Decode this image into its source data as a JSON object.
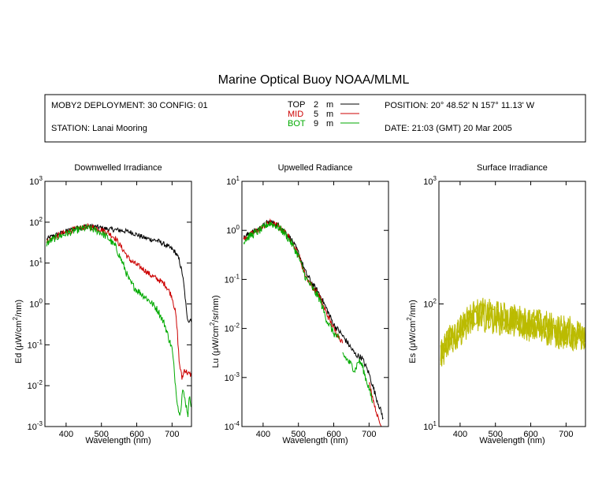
{
  "title": "Marine Optical Buoy NOAA/MLML",
  "info": {
    "deployment": "MOBY2 DEPLOYMENT: 30 CONFIG: 01",
    "station": "STATION: Lanai Mooring",
    "position": "POSITION: 20° 48.52' N   157° 11.13' W",
    "date": "DATE: 21:03 (GMT) 20 Mar 2005",
    "depth_unit": "m"
  },
  "legend": [
    {
      "name": "TOP",
      "depth": "2",
      "color": "#000000"
    },
    {
      "name": "MID",
      "depth": "5",
      "color": "#cc0000"
    },
    {
      "name": "BOT",
      "depth": "9",
      "color": "#00aa00"
    }
  ],
  "chart_data": [
    {
      "type": "line",
      "title": "Downwelled Irradiance",
      "xlabel": "Wavelength (nm)",
      "ylabel_prefix": "Ed  (",
      "ylabel_mu": "μ",
      "ylabel_mid": "W/cm",
      "ylabel_sup": "2",
      "ylabel_suffix": "/nm)",
      "xlim": [
        340,
        755
      ],
      "ylim": [
        0.001,
        1000
      ],
      "yscale": "log",
      "xticks": [
        400,
        500,
        600,
        700
      ],
      "yticks": [
        {
          "base": "10",
          "exp": "-3"
        },
        {
          "base": "10",
          "exp": "-2"
        },
        {
          "base": "10",
          "exp": "-1"
        },
        {
          "base": "10",
          "exp": "0"
        },
        {
          "base": "10",
          "exp": "1"
        },
        {
          "base": "10",
          "exp": "2"
        },
        {
          "base": "10",
          "exp": "3"
        }
      ],
      "series": [
        {
          "name": "TOP",
          "color": "#000000",
          "noise": 0.06,
          "x": [
            345,
            360,
            380,
            400,
            420,
            440,
            460,
            480,
            500,
            520,
            540,
            560,
            580,
            600,
            620,
            640,
            660,
            680,
            700,
            710,
            720,
            730,
            737,
            742,
            748,
            755
          ],
          "y": [
            38,
            45,
            52,
            60,
            68,
            75,
            80,
            78,
            72,
            68,
            65,
            62,
            58,
            50,
            42,
            38,
            35,
            28,
            22,
            18,
            12,
            5,
            1.5,
            0.5,
            0.38,
            0.45
          ]
        },
        {
          "name": "MID",
          "color": "#cc0000",
          "noise": 0.07,
          "x": [
            345,
            360,
            380,
            400,
            420,
            440,
            460,
            480,
            500,
            520,
            540,
            560,
            580,
            600,
            620,
            640,
            660,
            680,
            690,
            700,
            710,
            715,
            720,
            728,
            735,
            745,
            755
          ],
          "y": [
            33,
            40,
            48,
            56,
            65,
            72,
            78,
            74,
            66,
            55,
            40,
            22,
            12,
            9,
            7,
            5,
            4,
            3,
            2.2,
            1.5,
            0.6,
            0.2,
            0.04,
            0.015,
            0.025,
            0.02,
            0.018
          ]
        },
        {
          "name": "BOT",
          "color": "#00aa00",
          "noise": 0.09,
          "x": [
            345,
            360,
            380,
            400,
            420,
            440,
            460,
            480,
            500,
            520,
            540,
            560,
            580,
            600,
            620,
            640,
            660,
            680,
            690,
            700,
            705,
            710,
            715,
            720,
            725,
            730,
            738,
            745,
            750,
            755
          ],
          "y": [
            30,
            37,
            45,
            52,
            60,
            68,
            72,
            65,
            55,
            40,
            25,
            10,
            3.5,
            2.2,
            1.6,
            1.1,
            0.7,
            0.3,
            0.15,
            0.08,
            0.03,
            0.01,
            0.004,
            0.002,
            0.003,
            0.008,
            0.004,
            0.002,
            0.006,
            0.003
          ]
        }
      ]
    },
    {
      "type": "line",
      "title": "Upwelled Radiance",
      "xlabel": "Wavelength (nm)",
      "ylabel_prefix": "Lu  (",
      "ylabel_mu": "μ",
      "ylabel_mid": "W/cm",
      "ylabel_sup": "2",
      "ylabel_suffix": "/sr/nm)",
      "xlim": [
        340,
        755
      ],
      "ylim": [
        0.0001,
        10
      ],
      "yscale": "log",
      "xticks": [
        400,
        500,
        600,
        700
      ],
      "yticks": [
        {
          "base": "10",
          "exp": "-4"
        },
        {
          "base": "10",
          "exp": "-3"
        },
        {
          "base": "10",
          "exp": "-2"
        },
        {
          "base": "10",
          "exp": "-1"
        },
        {
          "base": "10",
          "exp": "0"
        },
        {
          "base": "10",
          "exp": "1"
        }
      ],
      "series": [
        {
          "name": "TOP",
          "color": "#000000",
          "noise": 0.06,
          "x": [
            345,
            360,
            380,
            400,
            410,
            420,
            440,
            460,
            480,
            500,
            520,
            540,
            560,
            580,
            600,
            620,
            640,
            660,
            680,
            700,
            720,
            740
          ],
          "y": [
            0.7,
            0.85,
            1.0,
            1.2,
            1.4,
            1.5,
            1.3,
            1.0,
            0.65,
            0.35,
            0.14,
            0.08,
            0.05,
            0.025,
            0.012,
            0.008,
            0.005,
            0.003,
            0.0025,
            0.0012,
            0.0004,
            0.00015
          ]
        },
        {
          "name": "MID",
          "color": "#cc0000",
          "noise": 0.06,
          "x": [
            345,
            360,
            380,
            400,
            410,
            420,
            440,
            460,
            480,
            500,
            520,
            540,
            560,
            580,
            600,
            620,
            625
          ],
          "y": [
            0.65,
            0.8,
            0.95,
            1.15,
            1.35,
            1.45,
            1.25,
            0.95,
            0.6,
            0.32,
            0.12,
            0.07,
            0.045,
            0.02,
            0.01,
            0.006,
            0.005
          ]
        },
        {
          "name": "MID",
          "color": "#cc0000",
          "noise": 0.04,
          "x": [
            700,
            710,
            720,
            730,
            740
          ],
          "y": [
            0.0008,
            0.0004,
            0.0002,
            0.00012,
            8e-05
          ]
        },
        {
          "name": "BOT",
          "color": "#00aa00",
          "noise": 0.08,
          "x": [
            345,
            360,
            380,
            400,
            410,
            420,
            440,
            460,
            480,
            500,
            520,
            540,
            560,
            580,
            600,
            615
          ],
          "y": [
            0.6,
            0.75,
            0.9,
            1.1,
            1.3,
            1.4,
            1.2,
            0.9,
            0.55,
            0.3,
            0.11,
            0.065,
            0.04,
            0.015,
            0.008,
            0.006
          ]
        },
        {
          "name": "BOT",
          "color": "#00aa00",
          "noise": 0.08,
          "x": [
            625,
            640,
            650,
            660,
            670,
            680,
            690,
            700,
            710
          ],
          "y": [
            0.003,
            0.0022,
            0.0018,
            0.0014,
            0.0022,
            0.0018,
            0.001,
            0.0006,
            0.0003
          ]
        }
      ]
    },
    {
      "type": "line",
      "title": "Surface Irradiance",
      "xlabel": "Wavelength (nm)",
      "ylabel_prefix": "Es  (",
      "ylabel_mu": "μ",
      "ylabel_mid": "W/cm",
      "ylabel_sup": "2",
      "ylabel_suffix": "/nm)",
      "xlim": [
        340,
        755
      ],
      "ylim": [
        10,
        1000
      ],
      "yscale": "log",
      "xticks": [
        400,
        500,
        600,
        700
      ],
      "yticks": [
        {
          "base": "10",
          "exp": "1"
        },
        {
          "base": "10",
          "exp": "2"
        },
        {
          "base": "10",
          "exp": "3"
        }
      ],
      "series": [
        {
          "name": "Es",
          "color": "#bbbb00",
          "noise": 0.12,
          "x": [
            345,
            360,
            380,
            400,
            420,
            440,
            460,
            480,
            500,
            520,
            540,
            560,
            580,
            600,
            620,
            640,
            660,
            680,
            700,
            720,
            740,
            755
          ],
          "y": [
            42,
            48,
            55,
            65,
            76,
            83,
            86,
            84,
            82,
            80,
            78,
            76,
            74,
            72,
            70,
            68,
            66,
            64,
            62,
            60,
            58,
            57
          ]
        },
        {
          "name": "Es",
          "color": "#bbbb00",
          "noise": 0.12,
          "x": [
            345,
            360,
            380,
            400,
            420,
            440,
            460,
            480,
            500,
            520,
            540,
            560,
            580,
            600,
            620,
            640,
            660,
            680,
            700,
            720,
            740,
            755
          ],
          "y": [
            40,
            46,
            52,
            62,
            72,
            79,
            82,
            80,
            78,
            76,
            74,
            72,
            70,
            68,
            66,
            64,
            62,
            60,
            58,
            56,
            54,
            53
          ]
        },
        {
          "name": "Es",
          "color": "#bbbb00",
          "noise": 0.12,
          "x": [
            345,
            360,
            380,
            400,
            420,
            440,
            460,
            480,
            500,
            520,
            540,
            560,
            580,
            600,
            620,
            640,
            660,
            680,
            700,
            720,
            740,
            755
          ],
          "y": [
            38,
            44,
            50,
            59,
            69,
            75,
            78,
            76,
            74,
            72,
            70,
            68,
            66,
            64,
            62,
            60,
            58,
            56,
            55,
            53,
            51,
            50
          ]
        }
      ]
    }
  ]
}
